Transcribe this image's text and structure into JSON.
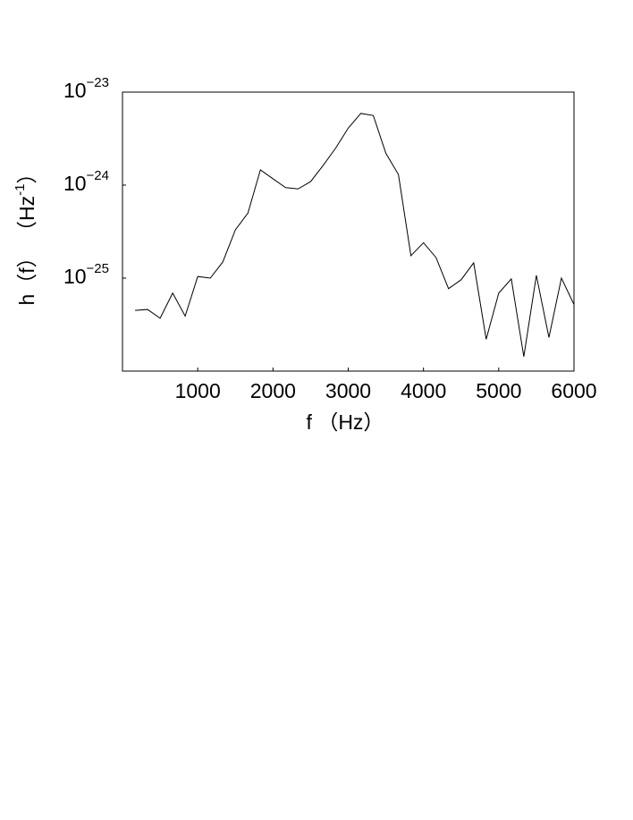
{
  "chart_data": {
    "type": "line",
    "xlabel": "f （Hz）",
    "ylabel": "h（f） （Hz",
    "ylabel_exponent": "-1",
    "ylabel_end": "）",
    "x": [
      167,
      333,
      500,
      667,
      833,
      1000,
      1167,
      1333,
      1500,
      1667,
      1833,
      2000,
      2167,
      2333,
      2500,
      2667,
      2833,
      3000,
      3167,
      3333,
      3500,
      3667,
      3833,
      4000,
      4167,
      4333,
      4500,
      4667,
      4833,
      5000,
      5167,
      5333,
      5500,
      5667,
      5833,
      6000
    ],
    "values": [
      4.5e-26,
      4.6e-26,
      3.7e-26,
      6.9e-26,
      3.9e-26,
      1.04e-25,
      1e-25,
      1.49e-25,
      3.3e-25,
      5e-25,
      1.46e-24,
      1.17e-24,
      9.4e-25,
      9.1e-25,
      1.09e-24,
      1.63e-24,
      2.5e-24,
      4.1e-24,
      5.9e-24,
      5.6e-24,
      2.2e-24,
      1.3e-24,
      1.74e-25,
      2.4e-25,
      1.66e-25,
      7.7e-26,
      9.6e-26,
      1.46e-25,
      2.2e-26,
      6.9e-26,
      9.8e-26,
      1.43e-26,
      1.07e-25,
      2.3e-26,
      1e-25,
      5.2e-26
    ],
    "color": "#000000",
    "xlim": [
      0,
      6000
    ],
    "xticks": [
      1000,
      2000,
      3000,
      4000,
      5000,
      6000
    ],
    "ylim": [
      1e-26,
      1e-23
    ],
    "yticks": [
      {
        "value": 1e-25,
        "label": "10",
        "exponent": "−25"
      },
      {
        "value": 1e-24,
        "label": "10",
        "exponent": "−24"
      },
      {
        "value": 1e-23,
        "label": "10",
        "exponent": "−23"
      }
    ],
    "ylog": true,
    "grid": false
  }
}
